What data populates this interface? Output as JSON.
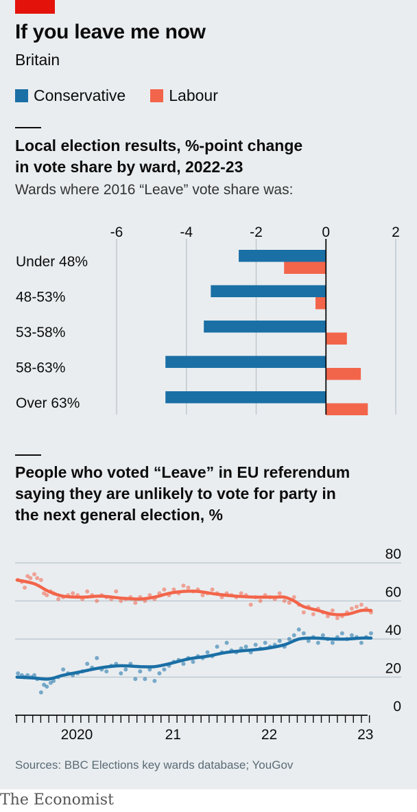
{
  "header": {
    "title": "If you leave me now",
    "subtitle": "Britain"
  },
  "legend": [
    {
      "label": "Conservative",
      "color": "#1a6fa5"
    },
    {
      "label": "Labour",
      "color": "#f2654a"
    }
  ],
  "source": "Sources: BBC Elections key wards database; YouGov",
  "brand": "The Economist",
  "chart_data": [
    {
      "type": "bar",
      "orientation": "horizontal",
      "title": "Local election results, %-point change\nin vote share by ward, 2022-23",
      "subtitle": "Wards where 2016 “Leave” vote share was:",
      "categories": [
        "Under 48%",
        "48-53%",
        "53-58%",
        "58-63%",
        "Over 63%"
      ],
      "series": [
        {
          "name": "Conservative",
          "color": "#1a6fa5",
          "values": [
            -2.5,
            -3.3,
            -3.5,
            -4.6,
            -4.6
          ]
        },
        {
          "name": "Labour",
          "color": "#f2654a",
          "values": [
            -1.2,
            -0.3,
            0.6,
            1.0,
            1.2
          ]
        }
      ],
      "xticks": [
        -6,
        -4,
        -2,
        0,
        2
      ],
      "xlim": [
        -6,
        2
      ],
      "grid": true
    },
    {
      "type": "line",
      "title": "People who voted “Leave” in EU referendum\nsaying they are unlikely to vote for party in\nthe next general election, %",
      "yticks": [
        0,
        20,
        40,
        60,
        80
      ],
      "ylim": [
        0,
        80
      ],
      "xticks": [
        {
          "label": "2020",
          "year": 2020.0
        },
        {
          "label": "21",
          "year": 2021.0
        },
        {
          "label": "22",
          "year": 2022.0
        },
        {
          "label": "23",
          "year": 2023.0
        }
      ],
      "xlim": [
        2019.4,
        2023.2
      ],
      "grid": true,
      "series": [
        {
          "name": "Labour",
          "color": "#f2654a",
          "trend": [
            [
              2019.42,
              71
            ],
            [
              2019.6,
              69
            ],
            [
              2019.75,
              65
            ],
            [
              2019.9,
              62.5
            ],
            [
              2020.1,
              62
            ],
            [
              2020.3,
              62.5
            ],
            [
              2020.5,
              61.5
            ],
            [
              2020.7,
              61
            ],
            [
              2020.85,
              62
            ],
            [
              2021.0,
              64
            ],
            [
              2021.15,
              65
            ],
            [
              2021.3,
              65
            ],
            [
              2021.5,
              63.5
            ],
            [
              2021.7,
              62.5
            ],
            [
              2021.9,
              62
            ],
            [
              2022.1,
              62
            ],
            [
              2022.2,
              62
            ],
            [
              2022.3,
              60
            ],
            [
              2022.4,
              57
            ],
            [
              2022.55,
              55
            ],
            [
              2022.7,
              53
            ],
            [
              2022.85,
              53
            ],
            [
              2023.0,
              55
            ],
            [
              2023.1,
              55
            ]
          ],
          "points": [
            [
              2019.43,
              71
            ],
            [
              2019.47,
              70
            ],
            [
              2019.5,
              67
            ],
            [
              2019.53,
              73
            ],
            [
              2019.56,
              72
            ],
            [
              2019.6,
              74
            ],
            [
              2019.63,
              72
            ],
            [
              2019.67,
              71
            ],
            [
              2019.7,
              64
            ],
            [
              2019.73,
              63
            ],
            [
              2019.77,
              65
            ],
            [
              2019.8,
              64
            ],
            [
              2019.85,
              61
            ],
            [
              2019.9,
              62
            ],
            [
              2019.95,
              63
            ],
            [
              2020.0,
              64
            ],
            [
              2020.05,
              63
            ],
            [
              2020.1,
              61
            ],
            [
              2020.15,
              65
            ],
            [
              2020.2,
              63
            ],
            [
              2020.25,
              60
            ],
            [
              2020.3,
              63
            ],
            [
              2020.35,
              62
            ],
            [
              2020.4,
              61
            ],
            [
              2020.45,
              65
            ],
            [
              2020.5,
              60
            ],
            [
              2020.55,
              61
            ],
            [
              2020.6,
              62
            ],
            [
              2020.65,
              59
            ],
            [
              2020.7,
              62
            ],
            [
              2020.75,
              60
            ],
            [
              2020.8,
              63
            ],
            [
              2020.85,
              61
            ],
            [
              2020.9,
              64
            ],
            [
              2020.95,
              66
            ],
            [
              2021.0,
              63
            ],
            [
              2021.05,
              66
            ],
            [
              2021.1,
              64
            ],
            [
              2021.15,
              68
            ],
            [
              2021.2,
              67
            ],
            [
              2021.25,
              65
            ],
            [
              2021.3,
              66
            ],
            [
              2021.35,
              63
            ],
            [
              2021.4,
              64
            ],
            [
              2021.45,
              66
            ],
            [
              2021.5,
              64
            ],
            [
              2021.55,
              62
            ],
            [
              2021.6,
              64
            ],
            [
              2021.65,
              63
            ],
            [
              2021.7,
              62
            ],
            [
              2021.75,
              64
            ],
            [
              2021.8,
              63
            ],
            [
              2021.85,
              58
            ],
            [
              2021.9,
              62
            ],
            [
              2021.95,
              60
            ],
            [
              2022.0,
              63
            ],
            [
              2022.05,
              62
            ],
            [
              2022.1,
              61
            ],
            [
              2022.15,
              64
            ],
            [
              2022.2,
              60
            ],
            [
              2022.25,
              59
            ],
            [
              2022.3,
              62
            ],
            [
              2022.35,
              58
            ],
            [
              2022.4,
              54
            ],
            [
              2022.45,
              57
            ],
            [
              2022.5,
              53
            ],
            [
              2022.55,
              56
            ],
            [
              2022.6,
              54
            ],
            [
              2022.65,
              52
            ],
            [
              2022.7,
              55
            ],
            [
              2022.75,
              51
            ],
            [
              2022.8,
              52
            ],
            [
              2022.85,
              54
            ],
            [
              2022.9,
              56
            ],
            [
              2022.95,
              57
            ],
            [
              2023.0,
              58
            ],
            [
              2023.05,
              56
            ],
            [
              2023.1,
              54
            ]
          ]
        },
        {
          "name": "Conservative",
          "color": "#1a6fa5",
          "trend": [
            [
              2019.42,
              20
            ],
            [
              2019.6,
              19.5
            ],
            [
              2019.75,
              19
            ],
            [
              2019.9,
              21
            ],
            [
              2020.1,
              23
            ],
            [
              2020.3,
              25
            ],
            [
              2020.5,
              26
            ],
            [
              2020.7,
              25.5
            ],
            [
              2020.85,
              25.5
            ],
            [
              2021.0,
              27
            ],
            [
              2021.2,
              29.5
            ],
            [
              2021.4,
              31
            ],
            [
              2021.6,
              33
            ],
            [
              2021.8,
              34
            ],
            [
              2022.0,
              35
            ],
            [
              2022.2,
              37
            ],
            [
              2022.35,
              40
            ],
            [
              2022.5,
              40.5
            ],
            [
              2022.7,
              40
            ],
            [
              2022.85,
              40
            ],
            [
              2023.0,
              40.5
            ],
            [
              2023.1,
              40.5
            ]
          ],
          "points": [
            [
              2019.43,
              22
            ],
            [
              2019.47,
              21
            ],
            [
              2019.5,
              20
            ],
            [
              2019.53,
              21
            ],
            [
              2019.57,
              20
            ],
            [
              2019.6,
              21
            ],
            [
              2019.63,
              19
            ],
            [
              2019.67,
              12
            ],
            [
              2019.7,
              16
            ],
            [
              2019.73,
              15
            ],
            [
              2019.77,
              17
            ],
            [
              2019.8,
              18
            ],
            [
              2019.85,
              20
            ],
            [
              2019.9,
              24
            ],
            [
              2019.95,
              22
            ],
            [
              2020.0,
              21
            ],
            [
              2020.05,
              22
            ],
            [
              2020.1,
              23
            ],
            [
              2020.15,
              27
            ],
            [
              2020.2,
              25
            ],
            [
              2020.25,
              30
            ],
            [
              2020.3,
              24
            ],
            [
              2020.35,
              23
            ],
            [
              2020.4,
              26
            ],
            [
              2020.45,
              27
            ],
            [
              2020.5,
              22
            ],
            [
              2020.55,
              24
            ],
            [
              2020.6,
              27
            ],
            [
              2020.65,
              19
            ],
            [
              2020.7,
              23
            ],
            [
              2020.75,
              19
            ],
            [
              2020.8,
              24
            ],
            [
              2020.85,
              18
            ],
            [
              2020.9,
              22
            ],
            [
              2020.95,
              24
            ],
            [
              2021.0,
              26
            ],
            [
              2021.05,
              28
            ],
            [
              2021.1,
              29
            ],
            [
              2021.15,
              27
            ],
            [
              2021.2,
              30
            ],
            [
              2021.25,
              28
            ],
            [
              2021.3,
              31
            ],
            [
              2021.35,
              30
            ],
            [
              2021.4,
              33
            ],
            [
              2021.45,
              31
            ],
            [
              2021.5,
              36
            ],
            [
              2021.55,
              33
            ],
            [
              2021.6,
              38
            ],
            [
              2021.65,
              34
            ],
            [
              2021.7,
              33
            ],
            [
              2021.75,
              35
            ],
            [
              2021.8,
              36
            ],
            [
              2021.85,
              33
            ],
            [
              2021.9,
              37
            ],
            [
              2021.95,
              35
            ],
            [
              2022.0,
              38
            ],
            [
              2022.05,
              36
            ],
            [
              2022.1,
              37
            ],
            [
              2022.15,
              39
            ],
            [
              2022.2,
              36
            ],
            [
              2022.25,
              40
            ],
            [
              2022.3,
              42
            ],
            [
              2022.35,
              45
            ],
            [
              2022.4,
              43
            ],
            [
              2022.45,
              39
            ],
            [
              2022.5,
              41
            ],
            [
              2022.55,
              38
            ],
            [
              2022.6,
              42
            ],
            [
              2022.65,
              40
            ],
            [
              2022.7,
              38
            ],
            [
              2022.75,
              41
            ],
            [
              2022.8,
              43
            ],
            [
              2022.85,
              40
            ],
            [
              2022.9,
              42
            ],
            [
              2022.95,
              41
            ],
            [
              2023.0,
              38
            ],
            [
              2023.05,
              41
            ],
            [
              2023.1,
              43
            ]
          ]
        }
      ]
    }
  ]
}
